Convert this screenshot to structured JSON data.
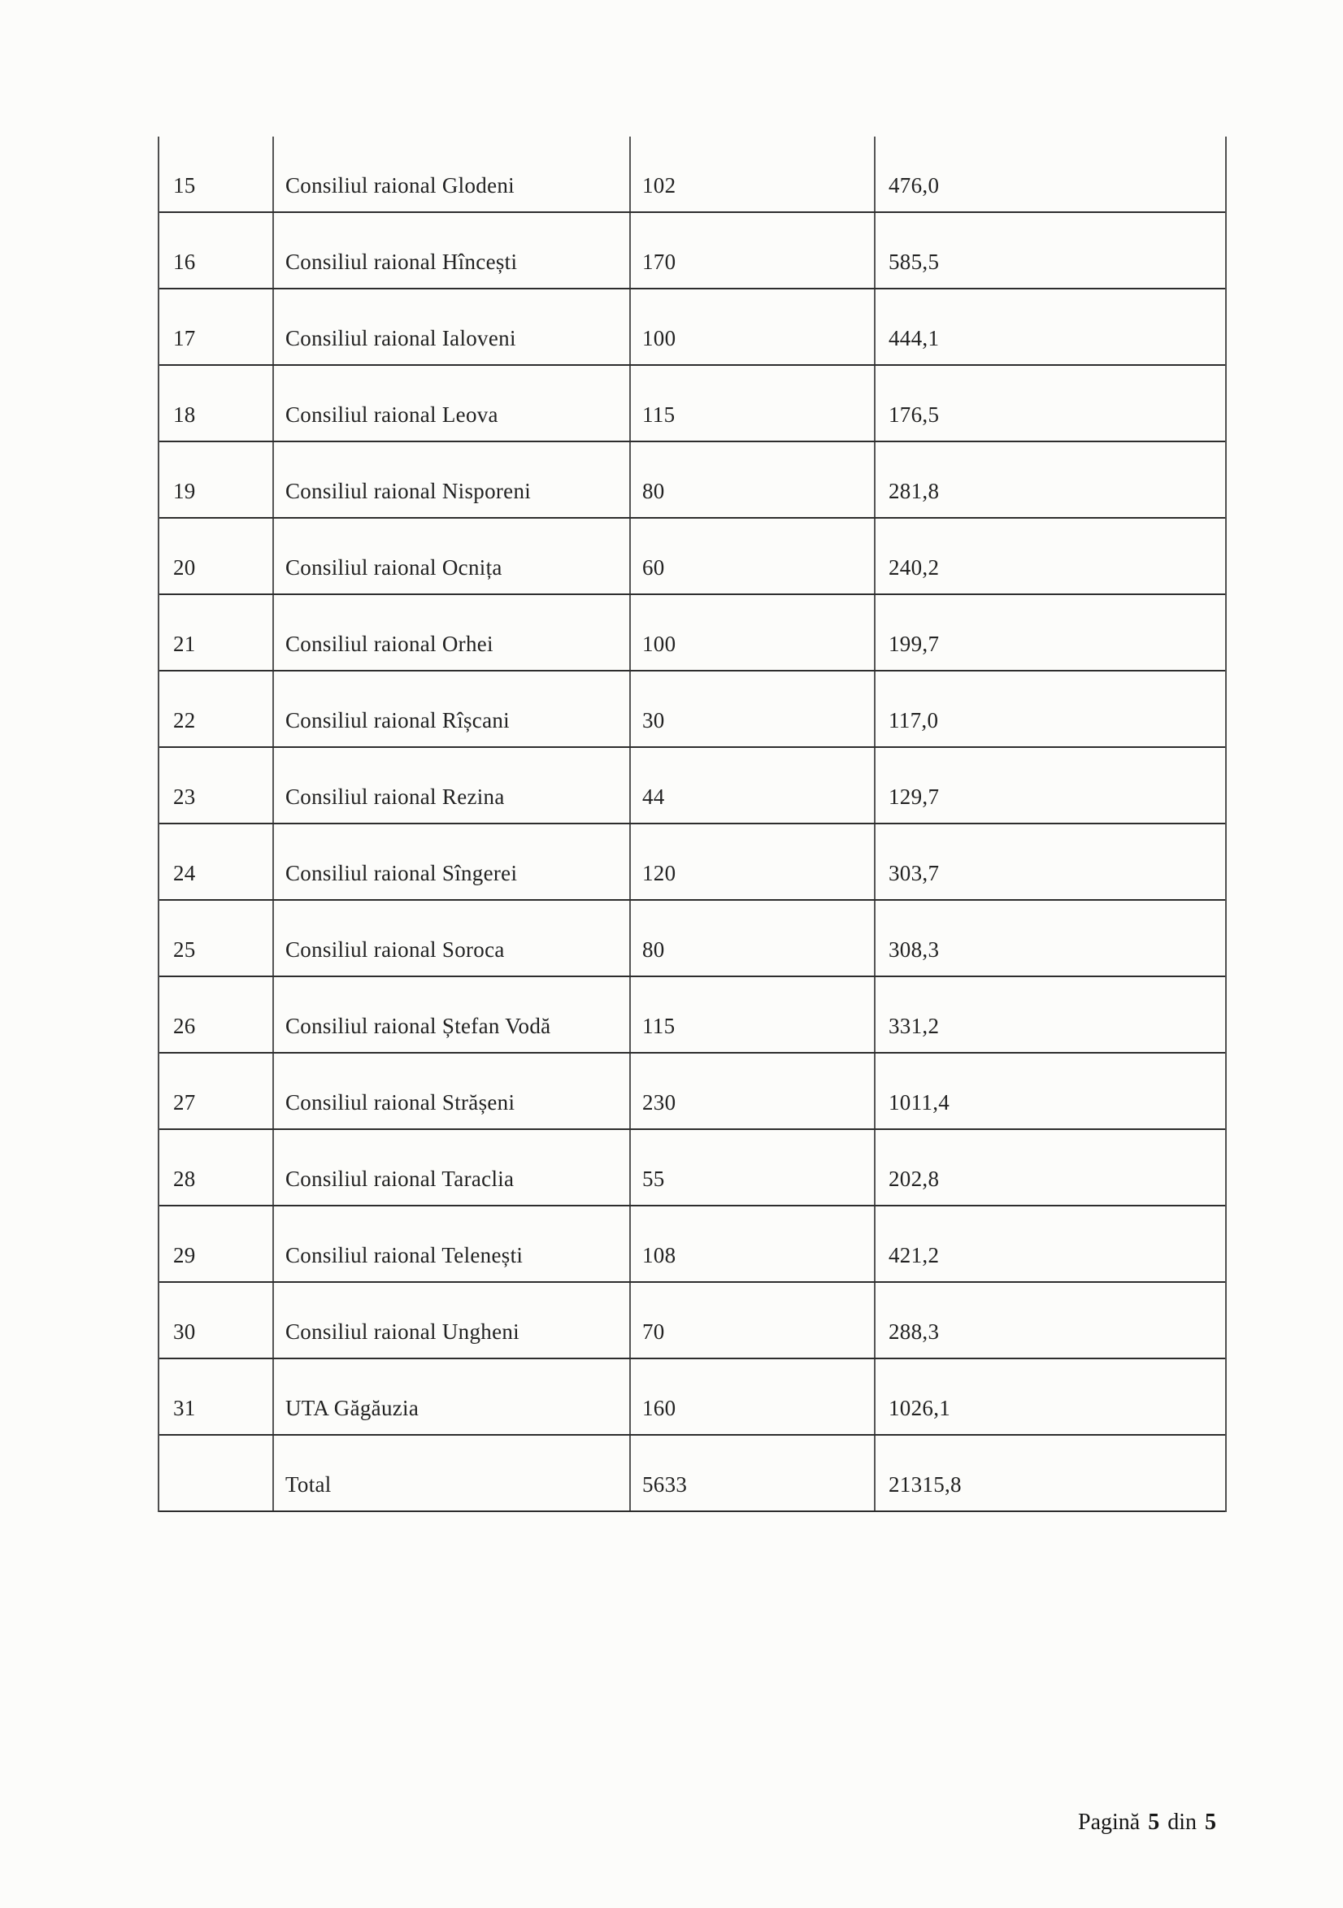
{
  "table": {
    "rows": [
      {
        "nr": "15",
        "name": "Consiliul raional Glodeni",
        "count": "102",
        "amount": "476,0"
      },
      {
        "nr": "16",
        "name": "Consiliul raional Hîncești",
        "count": "170",
        "amount": "585,5"
      },
      {
        "nr": "17",
        "name": "Consiliul raional Ialoveni",
        "count": "100",
        "amount": "444,1"
      },
      {
        "nr": "18",
        "name": "Consiliul raional Leova",
        "count": "115",
        "amount": "176,5"
      },
      {
        "nr": "19",
        "name": "Consiliul raional Nisporeni",
        "count": "80",
        "amount": "281,8"
      },
      {
        "nr": "20",
        "name": "Consiliul raional Ocnița",
        "count": "60",
        "amount": "240,2"
      },
      {
        "nr": "21",
        "name": "Consiliul raional Orhei",
        "count": "100",
        "amount": "199,7"
      },
      {
        "nr": "22",
        "name": "Consiliul raional Rîșcani",
        "count": "30",
        "amount": "117,0"
      },
      {
        "nr": "23",
        "name": "Consiliul raional Rezina",
        "count": "44",
        "amount": "129,7"
      },
      {
        "nr": "24",
        "name": "Consiliul raional Sîngerei",
        "count": "120",
        "amount": "303,7"
      },
      {
        "nr": "25",
        "name": "Consiliul raional Soroca",
        "count": "80",
        "amount": "308,3"
      },
      {
        "nr": "26",
        "name": "Consiliul raional Ștefan Vodă",
        "count": "115",
        "amount": "331,2"
      },
      {
        "nr": "27",
        "name": "Consiliul raional Strășeni",
        "count": "230",
        "amount": "1011,4"
      },
      {
        "nr": "28",
        "name": "Consiliul raional Taraclia",
        "count": "55",
        "amount": "202,8"
      },
      {
        "nr": "29",
        "name": "Consiliul raional Telenești",
        "count": "108",
        "amount": "421,2"
      },
      {
        "nr": "30",
        "name": "Consiliul raional Ungheni",
        "count": "70",
        "amount": "288,3"
      },
      {
        "nr": "31",
        "name": "UTA Găgăuzia",
        "count": "160",
        "amount": "1026,1"
      },
      {
        "nr": "",
        "name": "Total",
        "count": "5633",
        "amount": "21315,8"
      }
    ]
  },
  "footer": {
    "label_page": "Pagină",
    "current_page": "5",
    "label_of": "din",
    "total_pages": "5"
  }
}
